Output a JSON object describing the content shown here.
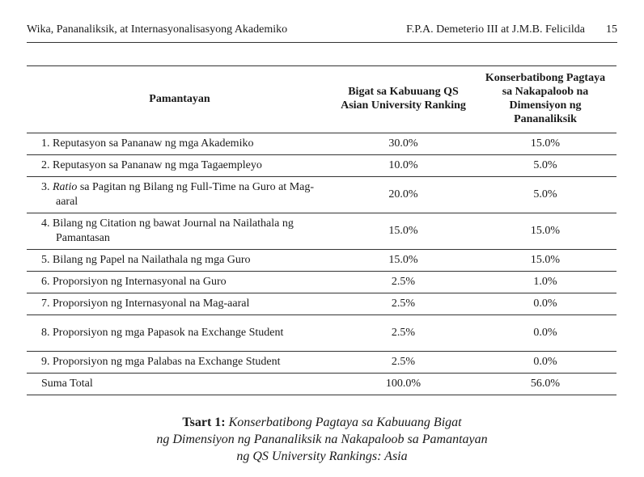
{
  "running_header": {
    "left": "Wika, Pananaliksik, at Internasyonalisasyong Akademiko",
    "authors": "F.P.A. Demeterio III at J.M.B. Felicilda",
    "page_number": "15"
  },
  "table": {
    "headers": [
      "Pamantayan",
      "Bigat sa Kabuuang QS Asian University Ranking",
      "Konserbatibong Pagtaya sa Nakapaloob na Dimensiyon ng Pananaliksik"
    ],
    "rows": [
      {
        "num": "1.",
        "pre": "",
        "italic": "",
        "text": "Reputasyon sa Pananaw ng mga Akademiko",
        "weight": "30.0%",
        "estimate": "15.0%"
      },
      {
        "num": "2.",
        "pre": "",
        "italic": "",
        "text": "Reputasyon sa Pananaw ng mga Tagaempleyo",
        "weight": "10.0%",
        "estimate": "5.0%"
      },
      {
        "num": "3.",
        "pre": "",
        "italic": "Ratio",
        "text": " sa Pagitan ng Bilang ng Full-Time na Guro at Mag-aaral",
        "weight": "20.0%",
        "estimate": "5.0%"
      },
      {
        "num": "4.",
        "pre": "",
        "italic": "",
        "text": "Bilang ng Citation ng bawat Journal na Nailathala ng Pamantasan",
        "weight": "15.0%",
        "estimate": "15.0%"
      },
      {
        "num": "5.",
        "pre": "",
        "italic": "",
        "text": "Bilang ng Papel na Nailathala ng mga Guro",
        "weight": "15.0%",
        "estimate": "15.0%"
      },
      {
        "num": "6.",
        "pre": "",
        "italic": "",
        "text": "Proporsiyon ng Internasyonal na Guro",
        "weight": "2.5%",
        "estimate": "1.0%"
      },
      {
        "num": "7.",
        "pre": "",
        "italic": "",
        "text": "Proporsiyon ng Internasyonal na Mag-aaral",
        "weight": "2.5%",
        "estimate": "0.0%"
      },
      {
        "num": "8.",
        "pre": "",
        "italic": "",
        "text": "Proporsiyon ng mga Papasok na Exchange Student",
        "weight": "2.5%",
        "estimate": "0.0%"
      },
      {
        "num": "9.",
        "pre": "",
        "italic": "",
        "text": "Proporsiyon ng mga Palabas na Exchange Student",
        "weight": "2.5%",
        "estimate": "0.0%"
      }
    ],
    "total": {
      "label": "Suma Total",
      "weight": "100.0%",
      "estimate": "56.0%"
    }
  },
  "caption": {
    "label": "Tsart 1:",
    "lines": [
      "Konserbatibong Pagtaya sa Kabuuang Bigat",
      "ng Dimensiyon ng Pananaliksik na Nakapaloob sa Pamantayan",
      "ng QS University Rankings: Asia"
    ]
  }
}
